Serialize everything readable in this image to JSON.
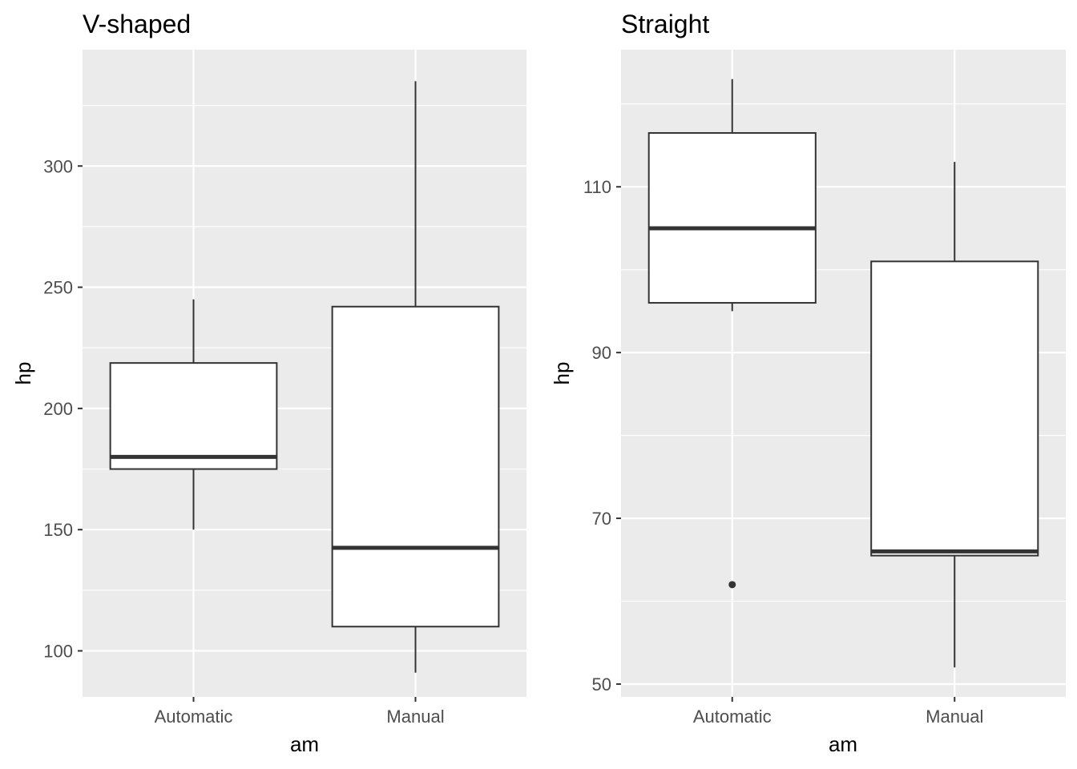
{
  "chart_data": [
    {
      "type": "boxplot",
      "title": "V-shaped",
      "xlabel": "am",
      "ylabel": "hp",
      "categories": [
        "Automatic",
        "Manual"
      ],
      "ylim": [
        81,
        348
      ],
      "yticks": [
        100,
        150,
        200,
        250,
        300
      ],
      "yticklabels": [
        "100",
        "150",
        "200",
        "250",
        "300"
      ],
      "grid": true,
      "background": "#EBEBEB",
      "boxes": [
        {
          "category": "Automatic",
          "whisker_low": 150,
          "q1": 175,
          "median": 180,
          "q3": 218.75,
          "whisker_high": 245,
          "outliers": []
        },
        {
          "category": "Manual",
          "whisker_low": 91,
          "q1": 110,
          "median": 142.5,
          "q3": 242,
          "whisker_high": 335,
          "outliers": []
        }
      ]
    },
    {
      "type": "boxplot",
      "title": "Straight",
      "xlabel": "am",
      "ylabel": "hp",
      "categories": [
        "Automatic",
        "Manual"
      ],
      "ylim": [
        48.45,
        126.55
      ],
      "yticks": [
        50,
        70,
        90,
        110
      ],
      "yticklabels": [
        "50",
        "70",
        "90",
        "110"
      ],
      "grid": true,
      "background": "#EBEBEB",
      "boxes": [
        {
          "category": "Automatic",
          "whisker_low": 95,
          "q1": 96,
          "median": 105,
          "q3": 116.5,
          "whisker_high": 123,
          "outliers": [
            62
          ]
        },
        {
          "category": "Manual",
          "whisker_low": 52,
          "q1": 65.5,
          "median": 66,
          "q3": 101,
          "whisker_high": 113,
          "outliers": []
        }
      ]
    }
  ]
}
